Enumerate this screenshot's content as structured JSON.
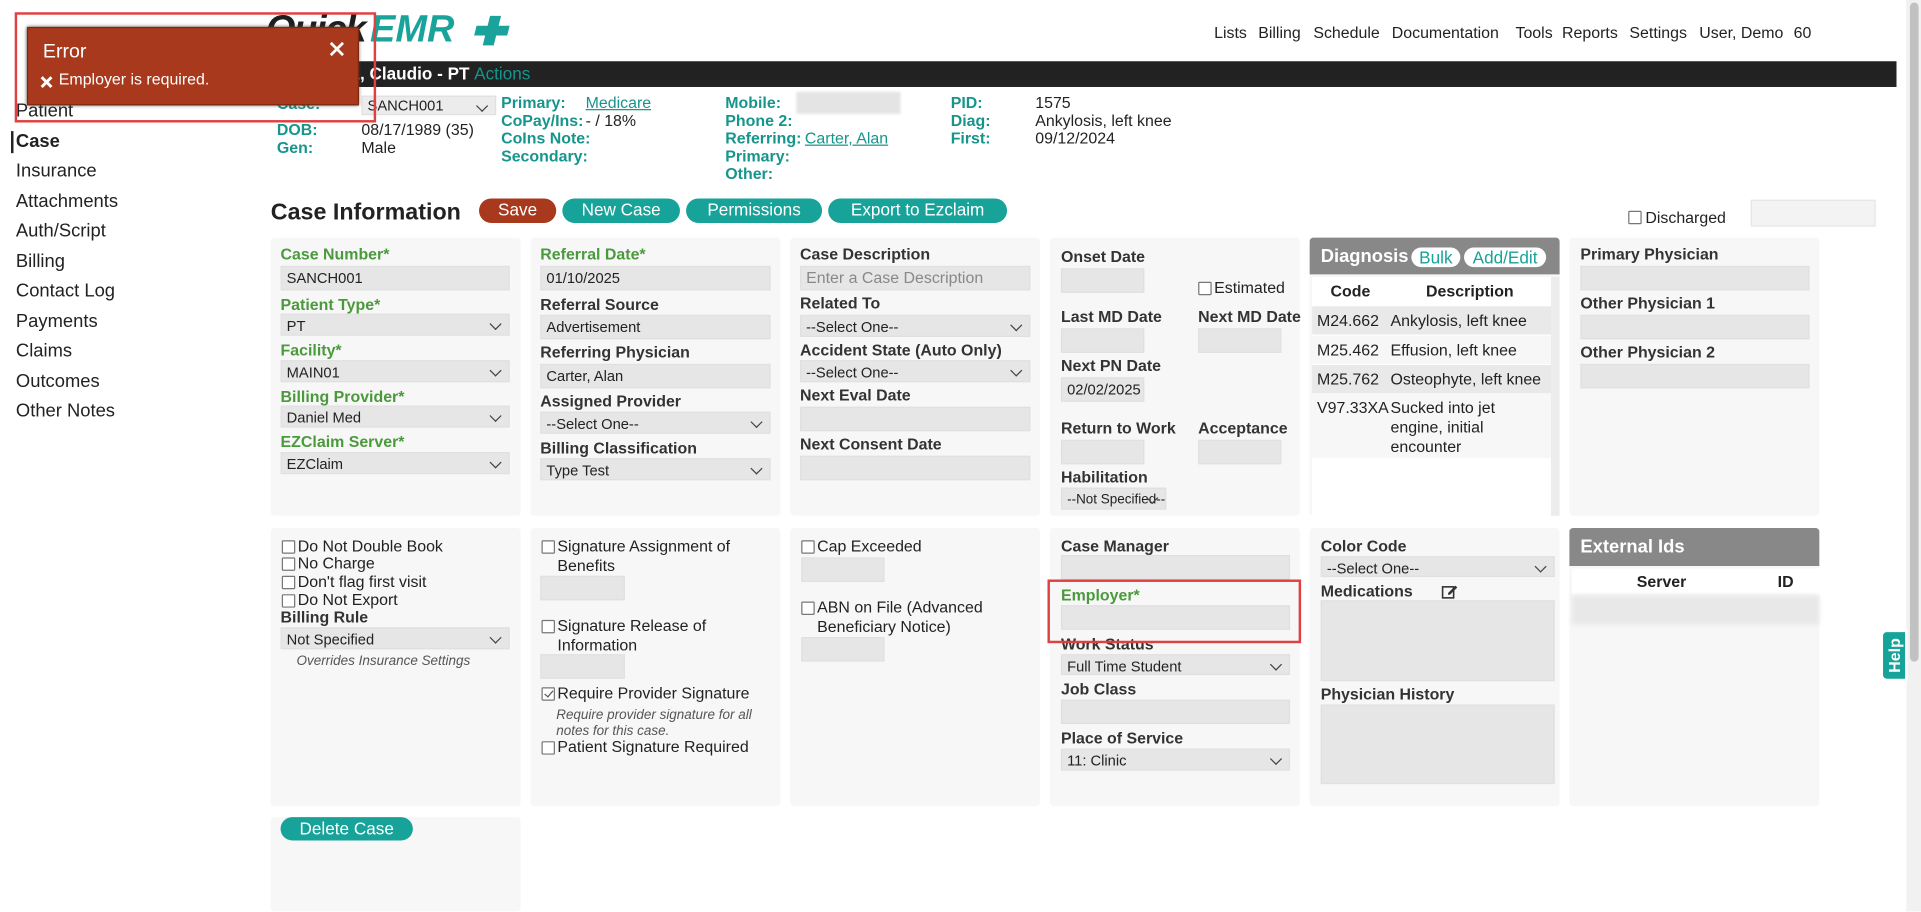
{
  "header": {
    "logo": {
      "quick": "Quick",
      "emr": "EMR"
    },
    "nav": [
      "Lists",
      "Billing",
      "Schedule",
      "Documentation",
      "Tools",
      "Reports",
      "Settings",
      "User, Demo",
      "60"
    ]
  },
  "toast": {
    "title": "Error",
    "message": "Employer is required."
  },
  "patient": {
    "name": "Sanchez, Claudio - PT",
    "actions": "Actions",
    "fields": [
      {
        "label": "Case:",
        "value": "SANCH001"
      },
      {
        "label": "DOB:",
        "value": "08/17/1989 (35)"
      },
      {
        "label": "Gen:",
        "value": "Male"
      },
      {
        "label": "Primary:",
        "value": "Medicare"
      },
      {
        "label": "CoPay/Ins:",
        "value": "- / 18%"
      },
      {
        "label": "CoIns Note:"
      },
      {
        "label": "Secondary:"
      },
      {
        "label": "Mobile:"
      },
      {
        "label": "Phone 2:"
      },
      {
        "label": "Referring:",
        "value": "Carter, Alan"
      },
      {
        "label": "Primary:"
      },
      {
        "label": "Other:"
      },
      {
        "label": "PID:",
        "value": "1575"
      },
      {
        "label": "Diag:",
        "value": "Ankylosis, left knee"
      },
      {
        "label": "First:",
        "value": "09/12/2024"
      }
    ]
  },
  "sidebar": [
    "Patient",
    "Case",
    "Insurance",
    "Attachments",
    "Auth/Script",
    "Billing",
    "Contact Log",
    "Payments",
    "Claims",
    "Outcomes",
    "Other Notes"
  ],
  "case_info": {
    "title": "Case Information",
    "buttons": [
      "Save",
      "New Case",
      "Permissions",
      "Export to Ezclaim"
    ],
    "discharged": "Discharged"
  },
  "form": {
    "case_number": {
      "label": "Case Number*",
      "value": "SANCH001"
    },
    "patient_type": {
      "label": "Patient Type*",
      "value": "PT"
    },
    "facility": {
      "label": "Facility*",
      "value": "MAIN01"
    },
    "billing_provider": {
      "label": "Billing Provider*",
      "value": "Daniel Med"
    },
    "ezclaim_server": {
      "label": "EZClaim Server*",
      "value": "EZClaim"
    },
    "referral_date": {
      "label": "Referral Date*",
      "value": "01/10/2025"
    },
    "referral_source": {
      "label": "Referral Source",
      "value": "Advertisement"
    },
    "referring_physician": {
      "label": "Referring Physician",
      "value": "Carter, Alan"
    },
    "assigned_provider": {
      "label": "Assigned Provider",
      "value": "--Select One--"
    },
    "billing_classification": {
      "label": "Billing Classification",
      "value": "Type Test"
    },
    "case_description": {
      "label": "Case Description",
      "placeholder": "Enter a Case Description"
    },
    "related_to": {
      "label": "Related To",
      "value": "--Select One--"
    },
    "accident_state": {
      "label": "Accident State (Auto Only)",
      "value": "--Select One--"
    },
    "next_eval_date": {
      "label": "Next Eval Date"
    },
    "next_consent_date": {
      "label": "Next Consent Date"
    },
    "onset_date": {
      "label": "Onset Date"
    },
    "estimated": {
      "label": "Estimated"
    },
    "last_md_date": {
      "label": "Last MD Date"
    },
    "next_md_date": {
      "label": "Next MD Date"
    },
    "next_pn_date": {
      "label": "Next PN Date",
      "value": "02/02/2025"
    },
    "return_to_work": {
      "label": "Return to Work"
    },
    "acceptance": {
      "label": "Acceptance"
    },
    "habilitation": {
      "label": "Habilitation",
      "value": "--Not Specified--"
    },
    "primary_physician": {
      "label": "Primary Physician"
    },
    "other_physician_1": {
      "label": "Other Physician 1"
    },
    "other_physician_2": {
      "label": "Other Physician 2"
    },
    "do_not_double_book": {
      "label": "Do Not Double Book"
    },
    "no_charge": {
      "label": "No Charge"
    },
    "dont_flag_first_visit": {
      "label": "Don't flag first visit"
    },
    "do_not_export": {
      "label": "Do Not Export"
    },
    "billing_rule": {
      "label": "Billing Rule",
      "value": "Not Specified",
      "note": "Overrides Insurance Settings"
    },
    "signature_assignment": {
      "label": "Signature Assignment of Benefits"
    },
    "signature_release": {
      "label": "Signature Release of Information"
    },
    "require_provider_signature": {
      "label": "Require Provider Signature",
      "note": "Require provider signature for all notes for this case.",
      "checked": true
    },
    "patient_signature_required": {
      "label": "Patient Signature Required"
    },
    "cap_exceeded": {
      "label": "Cap Exceeded"
    },
    "abn_on_file": {
      "label": "ABN on File (Advanced Beneficiary Notice)"
    },
    "case_manager": {
      "label": "Case Manager"
    },
    "employer": {
      "label": "Employer*"
    },
    "work_status": {
      "label": "Work Status",
      "value": "Full Time Student"
    },
    "job_class": {
      "label": "Job Class"
    },
    "place_of_service": {
      "label": "Place of Service",
      "value": "11: Clinic"
    },
    "color_code": {
      "label": "Color Code",
      "value": "--Select One--"
    },
    "medications": {
      "label": "Medications"
    },
    "physician_history": {
      "label": "Physician History"
    }
  },
  "diagnosis": {
    "title": "Diagnosis",
    "buttons": [
      "Bulk",
      "Add/Edit"
    ],
    "columns": [
      "Code",
      "Description"
    ],
    "rows": [
      [
        "M24.662",
        "Ankylosis, left knee"
      ],
      [
        "M25.462",
        "Effusion, left knee"
      ],
      [
        "M25.762",
        "Osteophyte, left knee"
      ],
      [
        "V97.33XA",
        "Sucked into jet engine, initial encounter"
      ]
    ]
  },
  "external_ids": {
    "title": "External Ids",
    "columns": [
      "Server",
      "ID"
    ]
  },
  "delete_case": "Delete Case",
  "help": "Help"
}
